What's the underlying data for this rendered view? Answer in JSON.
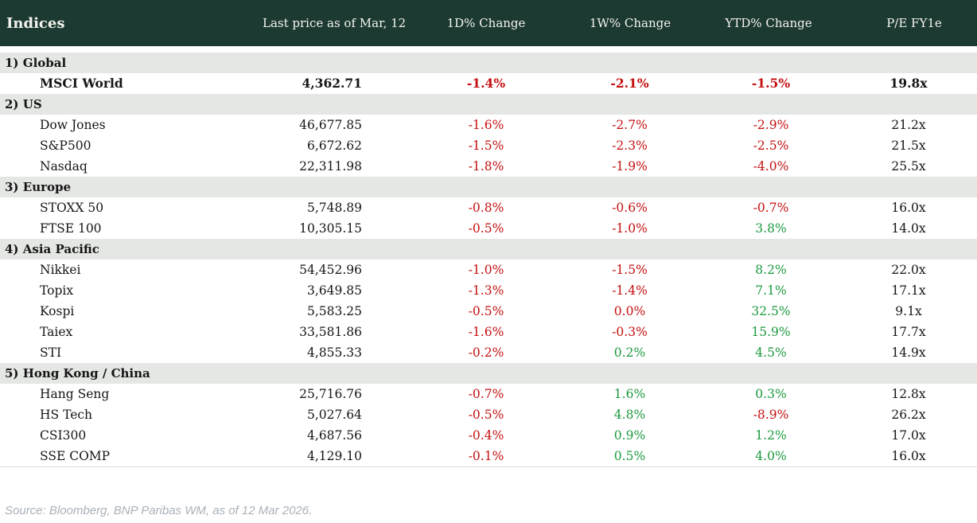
{
  "header": {
    "title": "Indices",
    "columns": [
      "Last price as of Mar, 12",
      "1D% Change",
      "1W% Change",
      "YTD% Change",
      "P/E FY1e"
    ]
  },
  "sections": [
    {
      "label": "1) Global",
      "rows": [
        {
          "name": "MSCI World",
          "emphasis": true,
          "price": "4,362.71",
          "changes": [
            {
              "v": "-1.4%",
              "s": "neg"
            },
            {
              "v": "-2.1%",
              "s": "neg"
            },
            {
              "v": "-1.5%",
              "s": "neg"
            }
          ],
          "pe": "19.8x"
        }
      ]
    },
    {
      "label": "2) US",
      "rows": [
        {
          "name": "Dow Jones",
          "emphasis": false,
          "price": "46,677.85",
          "changes": [
            {
              "v": "-1.6%",
              "s": "neg"
            },
            {
              "v": "-2.7%",
              "s": "neg"
            },
            {
              "v": "-2.9%",
              "s": "neg"
            }
          ],
          "pe": "21.2x"
        },
        {
          "name": "S&P500",
          "emphasis": false,
          "price": "6,672.62",
          "changes": [
            {
              "v": "-1.5%",
              "s": "neg"
            },
            {
              "v": "-2.3%",
              "s": "neg"
            },
            {
              "v": "-2.5%",
              "s": "neg"
            }
          ],
          "pe": "21.5x"
        },
        {
          "name": "Nasdaq",
          "emphasis": false,
          "price": "22,311.98",
          "changes": [
            {
              "v": "-1.8%",
              "s": "neg"
            },
            {
              "v": "-1.9%",
              "s": "neg"
            },
            {
              "v": "-4.0%",
              "s": "neg"
            }
          ],
          "pe": "25.5x"
        }
      ]
    },
    {
      "label": "3) Europe",
      "rows": [
        {
          "name": "STOXX 50",
          "emphasis": false,
          "price": "5,748.89",
          "changes": [
            {
              "v": "-0.8%",
              "s": "neg"
            },
            {
              "v": "-0.6%",
              "s": "neg"
            },
            {
              "v": "-0.7%",
              "s": "neg"
            }
          ],
          "pe": "16.0x"
        },
        {
          "name": "FTSE 100",
          "emphasis": false,
          "price": "10,305.15",
          "changes": [
            {
              "v": "-0.5%",
              "s": "neg"
            },
            {
              "v": "-1.0%",
              "s": "neg"
            },
            {
              "v": "3.8%",
              "s": "pos"
            }
          ],
          "pe": "14.0x"
        }
      ]
    },
    {
      "label": "4) Asia Pacific",
      "rows": [
        {
          "name": "Nikkei",
          "emphasis": false,
          "price": "54,452.96",
          "changes": [
            {
              "v": "-1.0%",
              "s": "neg"
            },
            {
              "v": "-1.5%",
              "s": "neg"
            },
            {
              "v": "8.2%",
              "s": "pos"
            }
          ],
          "pe": "22.0x"
        },
        {
          "name": "Topix",
          "emphasis": false,
          "price": "3,649.85",
          "changes": [
            {
              "v": "-1.3%",
              "s": "neg"
            },
            {
              "v": "-1.4%",
              "s": "neg"
            },
            {
              "v": "7.1%",
              "s": "pos"
            }
          ],
          "pe": "17.1x"
        },
        {
          "name": "Kospi",
          "emphasis": false,
          "price": "5,583.25",
          "changes": [
            {
              "v": "-0.5%",
              "s": "neg"
            },
            {
              "v": "0.0%",
              "s": "neg"
            },
            {
              "v": "32.5%",
              "s": "pos"
            }
          ],
          "pe": "9.1x"
        },
        {
          "name": "Taiex",
          "emphasis": false,
          "price": "33,581.86",
          "changes": [
            {
              "v": "-1.6%",
              "s": "neg"
            },
            {
              "v": "-0.3%",
              "s": "neg"
            },
            {
              "v": "15.9%",
              "s": "pos"
            }
          ],
          "pe": "17.7x"
        },
        {
          "name": "STI",
          "emphasis": false,
          "price": "4,855.33",
          "changes": [
            {
              "v": "-0.2%",
              "s": "neg"
            },
            {
              "v": "0.2%",
              "s": "pos"
            },
            {
              "v": "4.5%",
              "s": "pos"
            }
          ],
          "pe": "14.9x"
        }
      ]
    },
    {
      "label": "5) Hong Kong / China",
      "rows": [
        {
          "name": "Hang Seng",
          "emphasis": false,
          "price": "25,716.76",
          "changes": [
            {
              "v": "-0.7%",
              "s": "neg"
            },
            {
              "v": "1.6%",
              "s": "pos"
            },
            {
              "v": "0.3%",
              "s": "pos"
            }
          ],
          "pe": "12.8x"
        },
        {
          "name": "HS Tech",
          "emphasis": false,
          "price": "5,027.64",
          "changes": [
            {
              "v": "-0.5%",
              "s": "neg"
            },
            {
              "v": "4.8%",
              "s": "pos"
            },
            {
              "v": "-8.9%",
              "s": "neg"
            }
          ],
          "pe": "26.2x"
        },
        {
          "name": "CSI300",
          "emphasis": false,
          "price": "4,687.56",
          "changes": [
            {
              "v": "-0.4%",
              "s": "neg"
            },
            {
              "v": "0.9%",
              "s": "pos"
            },
            {
              "v": "1.2%",
              "s": "pos"
            }
          ],
          "pe": "17.0x"
        },
        {
          "name": "SSE COMP",
          "emphasis": false,
          "price": "4,129.10",
          "changes": [
            {
              "v": "-0.1%",
              "s": "neg"
            },
            {
              "v": "0.5%",
              "s": "pos"
            },
            {
              "v": "4.0%",
              "s": "pos"
            }
          ],
          "pe": "16.0x"
        }
      ]
    }
  ],
  "footer": {
    "source": "Source: Bloomberg, BNP Paribas WM, as of 12 Mar 2026."
  },
  "colors": {
    "header_bg": "#1d3a32",
    "band_bg": "#e4e7e3",
    "negative": "#c50f0f",
    "positive": "#1b9a3e"
  }
}
